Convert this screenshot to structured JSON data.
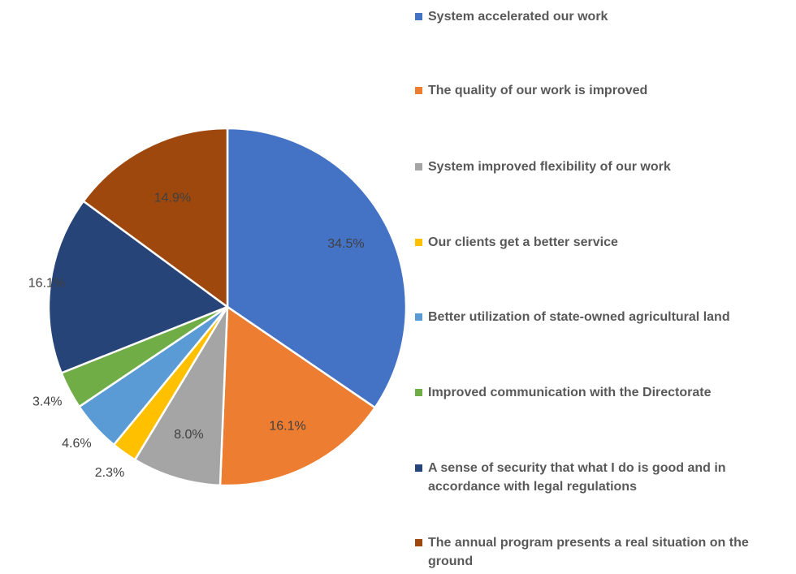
{
  "chart_data": {
    "type": "pie",
    "categories": [
      "System accelerated our work",
      "The quality of our work is improved",
      "System improved flexibility of our work",
      "Our clients get a better service",
      "Better utilization of state-owned agricultural land",
      "Improved communication with the Directorate",
      "A sense of security that what I do is good and in accordance with legal regulations",
      "The annual program presents a real situation on the ground"
    ],
    "values": [
      34.5,
      16.1,
      8,
      2.3,
      4.6,
      3.4,
      16.1,
      14.9
    ],
    "value_labels": [
      "34.5%",
      "16.1%",
      "8.0%",
      "2.3%",
      "4.6%",
      "3.4%",
      "16.1%",
      "14.9%"
    ],
    "colors": [
      "#4472c4",
      "#ed7d31",
      "#a5a5a5",
      "#ffc000",
      "#5b9bd5",
      "#70ad47",
      "#264478",
      "#9e480e"
    ],
    "legend": "right"
  }
}
